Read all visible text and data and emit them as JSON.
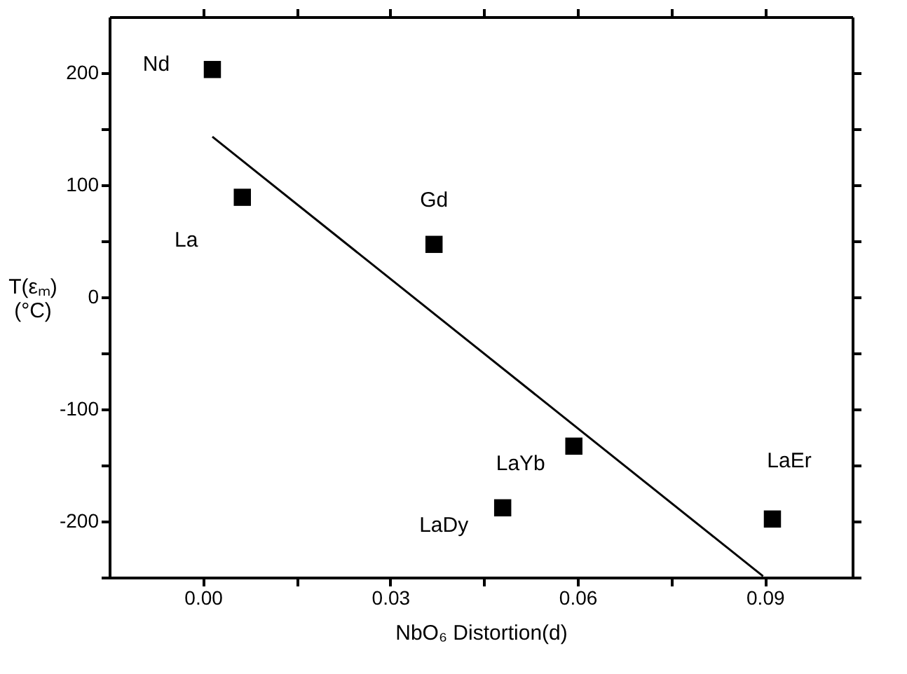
{
  "chart_data": {
    "type": "scatter",
    "xlabel": "NbO₆ Distortion(d)",
    "ylabel": "T(εₘ) (°C)",
    "xlim": [
      -0.015,
      0.104
    ],
    "ylim": [
      -250,
      250
    ],
    "xticks": [
      {
        "value": 0,
        "label": "0.00"
      },
      {
        "value": 0.015,
        "label": null
      },
      {
        "value": 0.03,
        "label": "0.03"
      },
      {
        "value": 0.045,
        "label": null
      },
      {
        "value": 0.06,
        "label": "0.06"
      },
      {
        "value": 0.075,
        "label": null
      },
      {
        "value": 0.09,
        "label": "0.09"
      }
    ],
    "yticks": [
      {
        "value": -250,
        "label": null
      },
      -200,
      {
        "value": -150,
        "label": null
      },
      -100,
      {
        "value": -50,
        "label": null
      },
      0,
      {
        "value": 50,
        "label": null
      },
      100,
      {
        "value": 150,
        "label": null
      },
      200
    ],
    "grid": false,
    "series": [
      {
        "color": "#000000",
        "marker": "square",
        "x": [
          0.0015,
          0.0063,
          0.037,
          0.048,
          0.0594,
          0.0912
        ],
        "values": [
          203,
          89,
          47,
          -188,
          -133,
          -198
        ]
      },
      {
        "type": "line",
        "color": "#000000",
        "marker": "none",
        "line_style": "solid",
        "x": [
          0.0015,
          0.0897
        ],
        "values": [
          143,
          -249
        ]
      }
    ],
    "annotations": [
      {
        "text": "Nd",
        "x": 0.0015,
        "y": 203
      },
      {
        "text": "La",
        "x": 0.0063,
        "y": 89
      },
      {
        "text": "Gd",
        "x": 0.037,
        "y": 47
      },
      {
        "text": "LaDy",
        "x": 0.048,
        "y": -188
      },
      {
        "text": "LaYb",
        "x": 0.0594,
        "y": -133
      },
      {
        "text": "LaEr",
        "x": 0.0912,
        "y": -198
      }
    ]
  }
}
